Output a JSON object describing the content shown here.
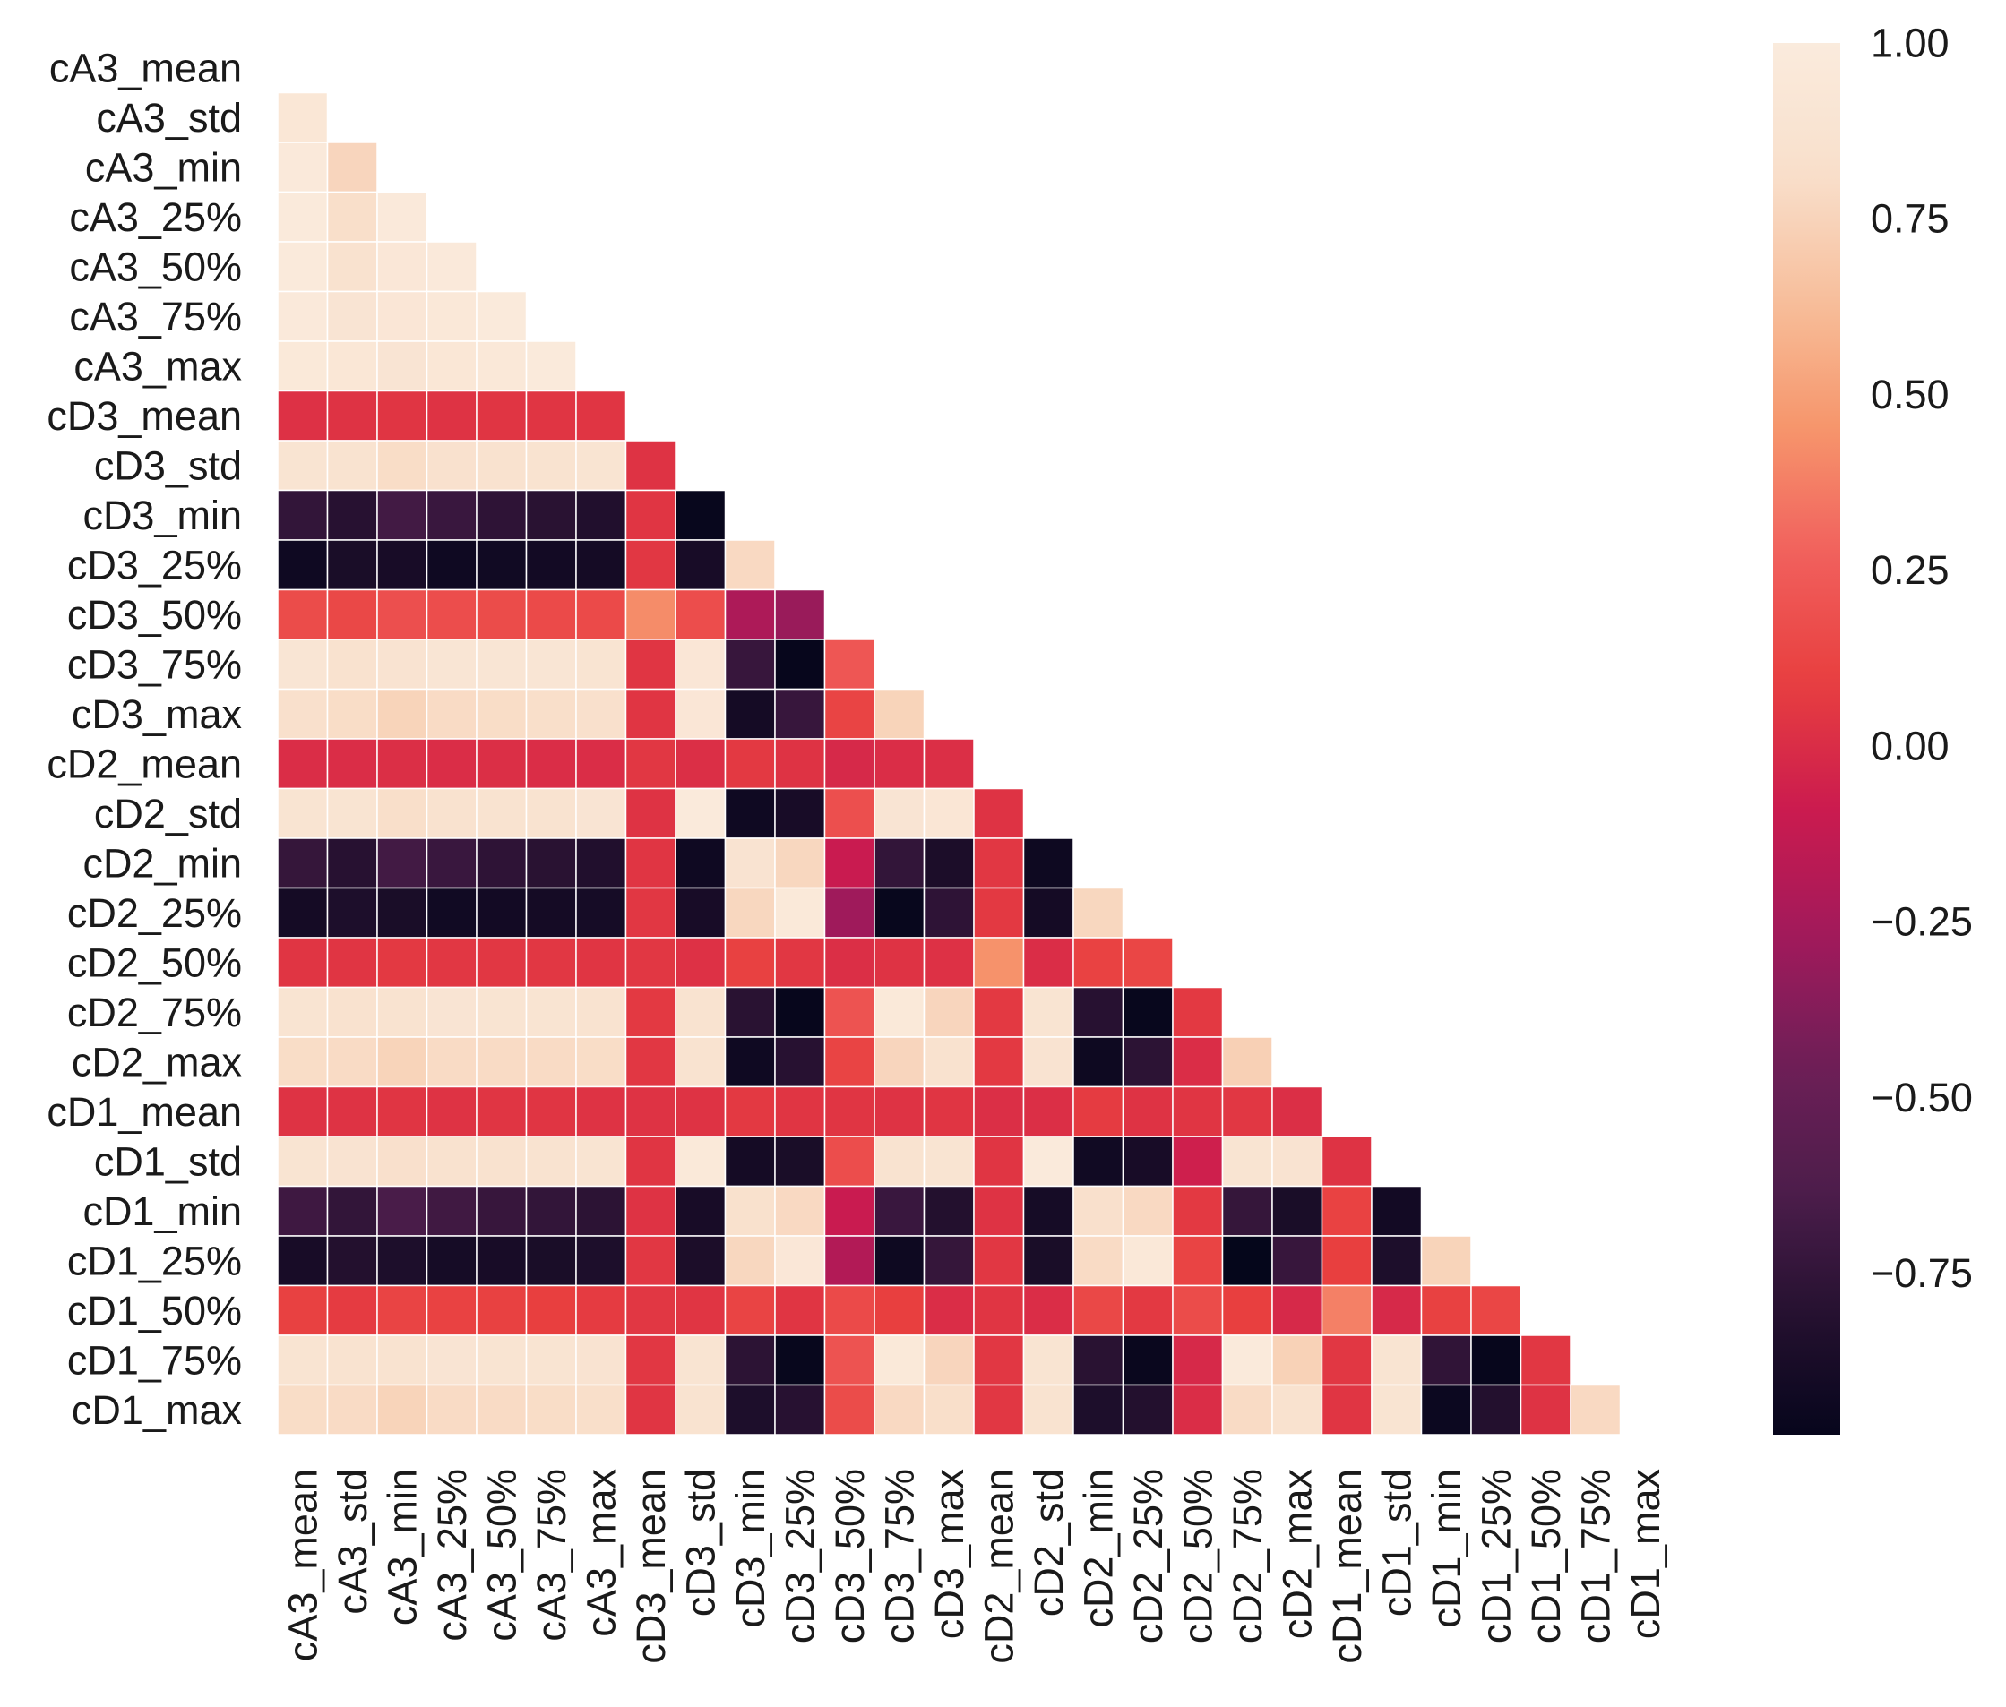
{
  "chart_data": {
    "type": "heatmap",
    "variant": "lower-triangle correlation matrix (diagonal and upper triangle masked)",
    "title": "",
    "xlabel": "",
    "ylabel": "",
    "labels": [
      "cA3_mean",
      "cA3_std",
      "cA3_min",
      "cA3_25%",
      "cA3_50%",
      "cA3_75%",
      "cA3_max",
      "cD3_mean",
      "cD3_std",
      "cD3_min",
      "cD3_25%",
      "cD3_50%",
      "cD3_75%",
      "cD3_max",
      "cD2_mean",
      "cD2_std",
      "cD2_min",
      "cD2_25%",
      "cD2_50%",
      "cD2_75%",
      "cD2_max",
      "cD1_mean",
      "cD1_std",
      "cD1_min",
      "cD1_25%",
      "cD1_50%",
      "cD1_75%",
      "cD1_max"
    ],
    "matrix": [
      [],
      [
        0.93
      ],
      [
        0.97,
        0.76
      ],
      [
        0.98,
        0.81,
        0.97
      ],
      [
        0.98,
        0.85,
        0.94,
        0.97
      ],
      [
        0.97,
        0.89,
        0.92,
        0.95,
        0.98
      ],
      [
        0.96,
        0.93,
        0.89,
        0.93,
        0.95,
        0.98
      ],
      [
        0.02,
        0.03,
        0.04,
        0.03,
        0.04,
        0.04,
        0.04
      ],
      [
        0.88,
        0.86,
        0.8,
        0.84,
        0.85,
        0.86,
        0.88,
        0.03
      ],
      [
        -0.75,
        -0.8,
        -0.68,
        -0.72,
        -0.77,
        -0.79,
        -0.83,
        0.04,
        -0.97
      ],
      [
        -0.93,
        -0.87,
        -0.88,
        -0.93,
        -0.92,
        -0.91,
        -0.9,
        0.05,
        -0.88,
        0.78
      ],
      [
        0.16,
        0.14,
        0.18,
        0.17,
        0.16,
        0.15,
        0.15,
        0.42,
        0.17,
        -0.22,
        -0.3
      ],
      [
        0.9,
        0.85,
        0.87,
        0.9,
        0.9,
        0.9,
        0.88,
        0.04,
        0.92,
        -0.73,
        -0.98,
        0.22
      ],
      [
        0.82,
        0.8,
        0.75,
        0.79,
        0.8,
        0.81,
        0.82,
        0.04,
        0.92,
        -0.9,
        -0.73,
        0.12,
        0.75
      ],
      [
        0.0,
        0.0,
        0.01,
        0.0,
        0.01,
        0.0,
        0.0,
        0.05,
        0.01,
        0.06,
        0.03,
        -0.02,
        0.0,
        0.01
      ],
      [
        0.88,
        0.88,
        0.81,
        0.85,
        0.86,
        0.86,
        0.89,
        0.03,
        0.98,
        -0.93,
        -0.88,
        0.18,
        0.89,
        0.91,
        0.03
      ],
      [
        -0.74,
        -0.8,
        -0.68,
        -0.72,
        -0.77,
        -0.79,
        -0.83,
        0.04,
        -0.93,
        0.87,
        0.77,
        -0.1,
        -0.75,
        -0.86,
        0.05,
        -0.94
      ],
      [
        -0.9,
        -0.85,
        -0.87,
        -0.92,
        -0.91,
        -0.9,
        -0.89,
        0.05,
        -0.88,
        0.77,
        0.96,
        -0.28,
        -0.97,
        -0.77,
        0.06,
        -0.9,
        0.77
      ],
      [
        0.04,
        0.04,
        0.06,
        0.05,
        0.05,
        0.05,
        0.04,
        0.05,
        0.02,
        0.1,
        0.05,
        0.01,
        0.03,
        0.02,
        0.44,
        0.0,
        0.11,
        0.13
      ],
      [
        0.88,
        0.85,
        0.86,
        0.89,
        0.88,
        0.88,
        0.86,
        0.06,
        0.86,
        -0.79,
        -0.98,
        0.2,
        0.96,
        0.76,
        0.06,
        0.88,
        -0.8,
        -0.97,
        0.06
      ],
      [
        0.8,
        0.79,
        0.75,
        0.79,
        0.79,
        0.79,
        0.8,
        0.05,
        0.86,
        -0.93,
        -0.8,
        0.12,
        0.76,
        0.85,
        0.06,
        0.87,
        -0.94,
        -0.78,
        0.0,
        0.73
      ],
      [
        0.03,
        0.03,
        0.04,
        0.03,
        0.04,
        0.04,
        0.03,
        0.03,
        0.03,
        0.06,
        0.04,
        0.04,
        0.03,
        0.04,
        0.01,
        0.01,
        0.07,
        0.03,
        0.04,
        0.05,
        0.01
      ],
      [
        0.88,
        0.87,
        0.82,
        0.85,
        0.85,
        0.86,
        0.88,
        0.04,
        0.96,
        -0.9,
        -0.87,
        0.17,
        0.86,
        0.88,
        0.04,
        0.98,
        -0.92,
        -0.88,
        -0.07,
        0.88,
        0.87,
        0.03
      ],
      [
        -0.7,
        -0.75,
        -0.65,
        -0.69,
        -0.73,
        -0.75,
        -0.78,
        0.03,
        -0.88,
        0.83,
        0.78,
        -0.1,
        -0.72,
        -0.82,
        0.03,
        -0.89,
        0.82,
        0.78,
        0.06,
        -0.74,
        -0.87,
        0.11,
        -0.91
      ],
      [
        -0.88,
        -0.82,
        -0.85,
        -0.89,
        -0.88,
        -0.87,
        -0.85,
        0.05,
        -0.86,
        0.77,
        0.94,
        -0.2,
        -0.94,
        -0.74,
        0.05,
        -0.87,
        0.79,
        0.95,
        0.12,
        -0.99,
        -0.73,
        0.09,
        -0.85,
        0.75
      ],
      [
        0.1,
        0.07,
        0.12,
        0.11,
        0.1,
        0.09,
        0.07,
        0.05,
        0.04,
        0.12,
        0.04,
        0.15,
        0.09,
        0.0,
        0.04,
        0.0,
        0.14,
        0.06,
        0.16,
        0.09,
        -0.02,
        0.38,
        -0.02,
        0.1,
        0.13
      ],
      [
        0.88,
        0.86,
        0.86,
        0.89,
        0.88,
        0.88,
        0.87,
        0.05,
        0.88,
        -0.78,
        -0.97,
        0.2,
        0.96,
        0.76,
        0.05,
        0.88,
        -0.79,
        -0.96,
        -0.02,
        0.98,
        0.74,
        0.05,
        0.88,
        -0.76,
        -0.98,
        0.05
      ],
      [
        0.8,
        0.79,
        0.75,
        0.79,
        0.79,
        0.8,
        0.81,
        0.04,
        0.86,
        -0.85,
        -0.8,
        0.16,
        0.78,
        0.81,
        0.05,
        0.86,
        -0.85,
        -0.82,
        0.0,
        0.79,
        0.85,
        0.04,
        0.88,
        -0.95,
        -0.82,
        0.03,
        0.78
      ]
    ],
    "colormap": "rocket",
    "colormap_stops": [
      "#03051a",
      "#23102e",
      "#4c1d4b",
      "#6e1f57",
      "#a11a5b",
      "#cb1b4f",
      "#e83f3f",
      "#f1605d",
      "#f6966c",
      "#f7bf9c",
      "#f9e0cc",
      "#faebdd"
    ],
    "vmin": -1.0,
    "vmax": 1.0,
    "colorbar": {
      "ticks": [
        1.0,
        0.75,
        0.5,
        0.25,
        0.0,
        -0.25,
        -0.5,
        -0.75
      ],
      "tick_labels": [
        "1.00",
        "0.75",
        "0.50",
        "0.25",
        "0.00",
        "−0.25",
        "−0.50",
        "−0.75"
      ],
      "min": -0.98,
      "max": 1.0
    },
    "grid": "white cell borders",
    "x_tick_rotation": "vertical"
  }
}
